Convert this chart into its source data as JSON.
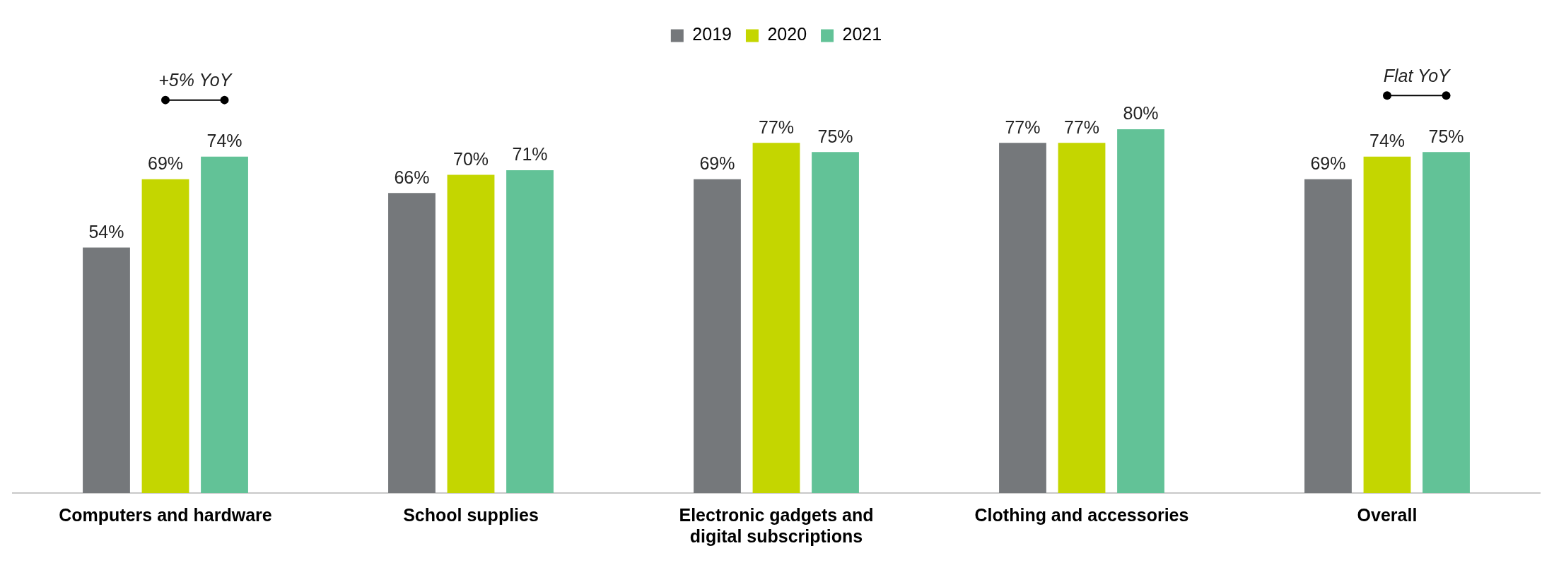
{
  "chart_data": {
    "type": "bar",
    "categories": [
      "Computers and hardware",
      "School supplies",
      "Electronic gadgets and digital subscriptions",
      "Clothing and accessories",
      "Overall"
    ],
    "series": [
      {
        "name": "2019",
        "color": "#75787b",
        "values": [
          54,
          66,
          69,
          77,
          69
        ],
        "value_labels": [
          "54%",
          "66%",
          "69%",
          "77%",
          "69%"
        ]
      },
      {
        "name": "2020",
        "color": "#c4d600",
        "values": [
          69,
          70,
          77,
          77,
          74
        ],
        "value_labels": [
          "69%",
          "70%",
          "77%",
          "77%",
          "74%"
        ]
      },
      {
        "name": "2021",
        "color": "#62c297",
        "values": [
          74,
          71,
          75,
          80,
          75
        ],
        "value_labels": [
          "74%",
          "71%",
          "75%",
          "80%",
          "75%"
        ]
      }
    ],
    "tick_labels": "x",
    "legend": "top",
    "grid": false,
    "annotations": [
      "+5% YoY",
      "Flat YoY"
    ]
  }
}
